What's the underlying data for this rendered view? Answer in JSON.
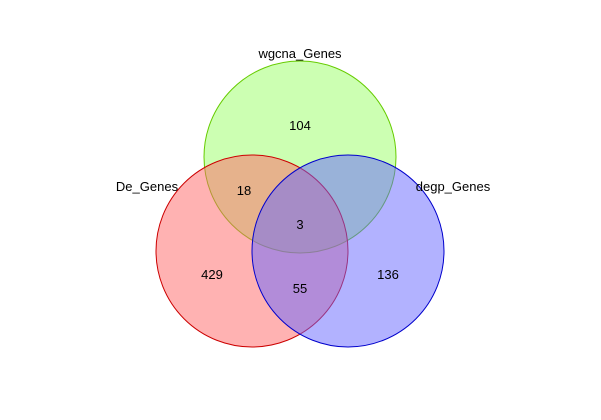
{
  "venn": {
    "sets": [
      {
        "key": "wgcna",
        "label": "wgcna_Genes",
        "fill": "#99ff66",
        "stroke": "#66cc00"
      },
      {
        "key": "de",
        "label": "De_Genes",
        "fill": "#ff6666",
        "stroke": "#cc0000"
      },
      {
        "key": "degp",
        "label": "degp_Genes",
        "fill": "#6666ff",
        "stroke": "#0000cc"
      }
    ],
    "counts": {
      "wgcna_only": "104",
      "de_only": "429",
      "degp_only": "136",
      "de_wgcna": "18",
      "de_degp": "55",
      "wgcna_degp": "",
      "all_three": "3"
    }
  }
}
